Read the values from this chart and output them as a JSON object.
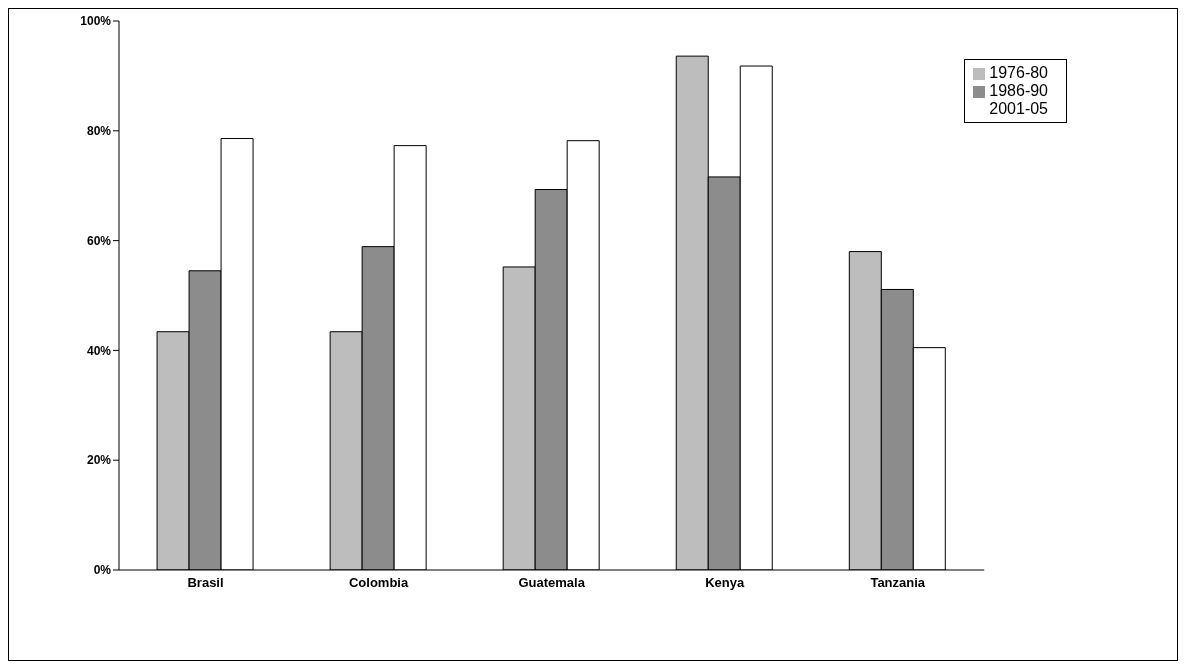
{
  "chart_data": {
    "type": "bar",
    "categories": [
      "Brasil",
      "Colombia",
      "Guatemala",
      "Kenya",
      "Tanzania"
    ],
    "series": [
      {
        "name": "1976-80",
        "color": "#bdbdbd",
        "values": [
          43.4,
          43.4,
          55.2,
          93.6,
          58.0
        ]
      },
      {
        "name": "1986-90",
        "color": "#8c8c8c",
        "values": [
          54.5,
          58.9,
          69.3,
          71.6,
          51.1
        ]
      },
      {
        "name": "2001-05",
        "color": "#ffffff",
        "values": [
          78.6,
          77.3,
          78.2,
          91.8,
          40.5
        ]
      }
    ],
    "ylim": [
      0,
      100
    ],
    "yticks": [
      {
        "value": 0,
        "label": "0%"
      },
      {
        "value": 20,
        "label": "20%"
      },
      {
        "value": 40,
        "label": "40%"
      },
      {
        "value": 60,
        "label": "60%"
      },
      {
        "value": 80,
        "label": "80%"
      },
      {
        "value": 100,
        "label": "100%"
      }
    ],
    "grid": false,
    "legend": "top right"
  }
}
